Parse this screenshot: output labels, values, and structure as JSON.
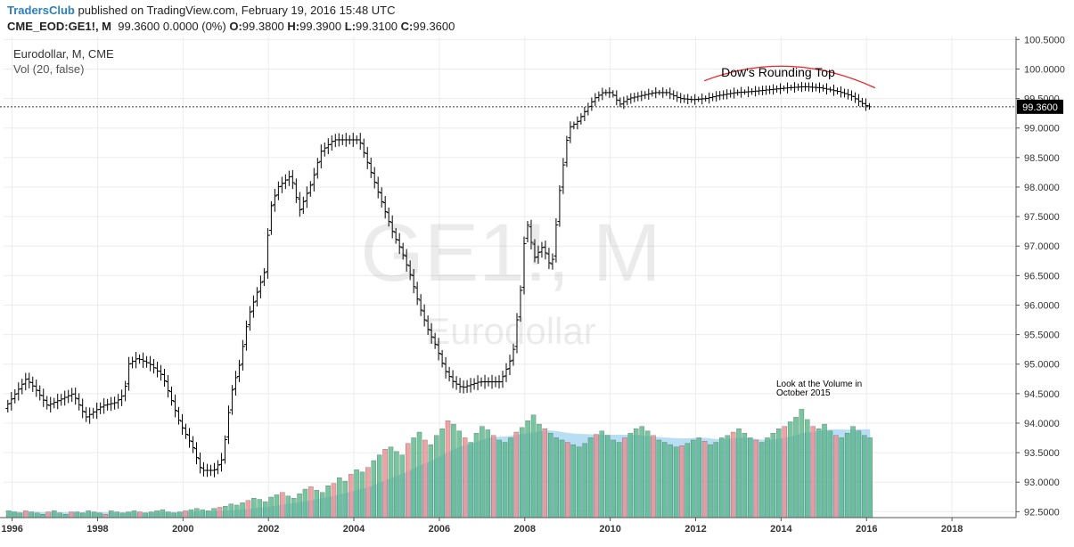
{
  "header": {
    "brand": "TradersClub",
    "published_text": "published on TradingView.com, February 19, 2016 15:48 UTC",
    "symbol": "CME_EOD:GE1!, M",
    "last": "99.3600",
    "change": "0.0000 (0%)",
    "o_label": "O:",
    "o_value": "99.3800",
    "h_label": "H:",
    "h_value": "99.3900",
    "l_label": "L:",
    "l_value": "99.3100",
    "c_label": "C:",
    "c_value": "99.3600"
  },
  "legend": {
    "title": "Eurodollar, M, CME",
    "volume": "Vol (20, false)"
  },
  "watermark": {
    "symbol": "GE1!, M",
    "name": "Eurodollar"
  },
  "annotations": {
    "rounding_top": "Dow's Rounding Top",
    "volume_note_line1": "Look at the Volume in",
    "volume_note_line2": "October 2015"
  },
  "price_tag": "99.3600",
  "colors": {
    "bar": "#000000",
    "rounding_curve": "#e8262b",
    "vol_up": "#53b987",
    "vol_down": "#eb8c8c",
    "vol_ma_fill": "#9fd3ef",
    "price_line": "#333333",
    "brand": "#2a7fc1"
  },
  "chart_data": {
    "type": "ohlc",
    "title": "Eurodollar, M, CME",
    "ylim": [
      92.4,
      100.55
    ],
    "y_ticks": [
      "100.5000",
      "100.0000",
      "99.5000",
      "99.0000",
      "98.5000",
      "98.0000",
      "97.5000",
      "97.0000",
      "96.5000",
      "96.0000",
      "95.5000",
      "95.0000",
      "94.5000",
      "94.0000",
      "93.5000",
      "93.0000",
      "92.5000"
    ],
    "x_ticks": [
      "1996",
      "1998",
      "2000",
      "2002",
      "2004",
      "2006",
      "2008",
      "2010",
      "2012",
      "2014",
      "2016",
      "2018"
    ],
    "xlim": [
      1995.8,
      2019.5
    ],
    "price_path": [
      [
        1995.9,
        94.25
      ],
      [
        1996.2,
        94.55
      ],
      [
        1996.4,
        94.75
      ],
      [
        1996.6,
        94.6
      ],
      [
        1996.9,
        94.3
      ],
      [
        1997.2,
        94.4
      ],
      [
        1997.5,
        94.5
      ],
      [
        1997.8,
        94.1
      ],
      [
        1998.2,
        94.3
      ],
      [
        1998.5,
        94.35
      ],
      [
        1998.7,
        94.5
      ],
      [
        1998.8,
        95.0
      ],
      [
        1999.0,
        95.1
      ],
      [
        1999.3,
        95.0
      ],
      [
        1999.6,
        94.8
      ],
      [
        1999.8,
        94.4
      ],
      [
        2000.0,
        94.0
      ],
      [
        2000.3,
        93.6
      ],
      [
        2000.5,
        93.2
      ],
      [
        2000.8,
        93.2
      ],
      [
        2001.0,
        93.4
      ],
      [
        2001.2,
        94.5
      ],
      [
        2001.4,
        95.0
      ],
      [
        2001.6,
        95.8
      ],
      [
        2001.8,
        96.2
      ],
      [
        2002.0,
        96.6
      ],
      [
        2002.1,
        97.6
      ],
      [
        2002.3,
        98.0
      ],
      [
        2002.6,
        98.2
      ],
      [
        2002.8,
        97.6
      ],
      [
        2003.1,
        98.1
      ],
      [
        2003.3,
        98.6
      ],
      [
        2003.6,
        98.8
      ],
      [
        2003.9,
        98.8
      ],
      [
        2004.2,
        98.8
      ],
      [
        2004.4,
        98.4
      ],
      [
        2004.6,
        98.0
      ],
      [
        2004.8,
        97.6
      ],
      [
        2005.0,
        97.2
      ],
      [
        2005.2,
        96.9
      ],
      [
        2005.4,
        96.5
      ],
      [
        2005.6,
        96.0
      ],
      [
        2005.8,
        95.6
      ],
      [
        2006.0,
        95.3
      ],
      [
        2006.2,
        94.9
      ],
      [
        2006.4,
        94.7
      ],
      [
        2006.6,
        94.6
      ],
      [
        2006.8,
        94.65
      ],
      [
        2007.0,
        94.7
      ],
      [
        2007.3,
        94.7
      ],
      [
        2007.5,
        94.7
      ],
      [
        2007.7,
        95.0
      ],
      [
        2007.8,
        95.2
      ],
      [
        2008.0,
        96.4
      ],
      [
        2008.1,
        97.5
      ],
      [
        2008.3,
        96.8
      ],
      [
        2008.5,
        97.0
      ],
      [
        2008.7,
        96.6
      ],
      [
        2008.9,
        98.0
      ],
      [
        2009.1,
        99.0
      ],
      [
        2009.3,
        99.1
      ],
      [
        2009.5,
        99.3
      ],
      [
        2009.7,
        99.5
      ],
      [
        2009.9,
        99.6
      ],
      [
        2010.1,
        99.6
      ],
      [
        2010.3,
        99.4
      ],
      [
        2010.5,
        99.5
      ],
      [
        2010.8,
        99.55
      ],
      [
        2011.1,
        99.6
      ],
      [
        2011.4,
        99.6
      ],
      [
        2011.7,
        99.5
      ],
      [
        2012.0,
        99.48
      ],
      [
        2012.3,
        99.5
      ],
      [
        2012.6,
        99.55
      ],
      [
        2013.0,
        99.6
      ],
      [
        2013.4,
        99.62
      ],
      [
        2013.8,
        99.65
      ],
      [
        2014.2,
        99.68
      ],
      [
        2014.6,
        99.7
      ],
      [
        2015.0,
        99.68
      ],
      [
        2015.4,
        99.62
      ],
      [
        2015.7,
        99.55
      ],
      [
        2015.9,
        99.45
      ],
      [
        2016.1,
        99.36
      ]
    ],
    "volume": {
      "name": "Vol (20, false)",
      "max": 100,
      "values": [
        6,
        5,
        4,
        6,
        5,
        4,
        3,
        5,
        6,
        4,
        3,
        5,
        5,
        4,
        6,
        5,
        4,
        3,
        6,
        5,
        4,
        5,
        6,
        5,
        4,
        5,
        6,
        7,
        5,
        4,
        5,
        6,
        7,
        8,
        7,
        6,
        8,
        9,
        10,
        12,
        11,
        13,
        15,
        17,
        16,
        14,
        18,
        20,
        22,
        19,
        17,
        21,
        25,
        27,
        24,
        22,
        28,
        30,
        35,
        32,
        38,
        42,
        40,
        44,
        50,
        55,
        60,
        62,
        58,
        55,
        65,
        70,
        75,
        68,
        64,
        72,
        78,
        85,
        82,
        76,
        70,
        66,
        74,
        80,
        77,
        72,
        68,
        66,
        70,
        75,
        79,
        85,
        90,
        82,
        78,
        74,
        70,
        68,
        66,
        64,
        62,
        65,
        70,
        73,
        76,
        72,
        68,
        66,
        70,
        74,
        78,
        80,
        76,
        72,
        68,
        66,
        64,
        62,
        63,
        65,
        68,
        70,
        67,
        64,
        66,
        70,
        72,
        75,
        78,
        74,
        70,
        68,
        66,
        70,
        74,
        78,
        80,
        84,
        88,
        95,
        86,
        80,
        78,
        82,
        76,
        72,
        70,
        74,
        80,
        76,
        72,
        70
      ],
      "down_indices": [
        3,
        7,
        11,
        17,
        23,
        31,
        37,
        42,
        48,
        53,
        57,
        60,
        63,
        66,
        70,
        73,
        77,
        80,
        85,
        89,
        94,
        98,
        103,
        108,
        113,
        118,
        122,
        127,
        131,
        136,
        141,
        145
      ]
    }
  }
}
